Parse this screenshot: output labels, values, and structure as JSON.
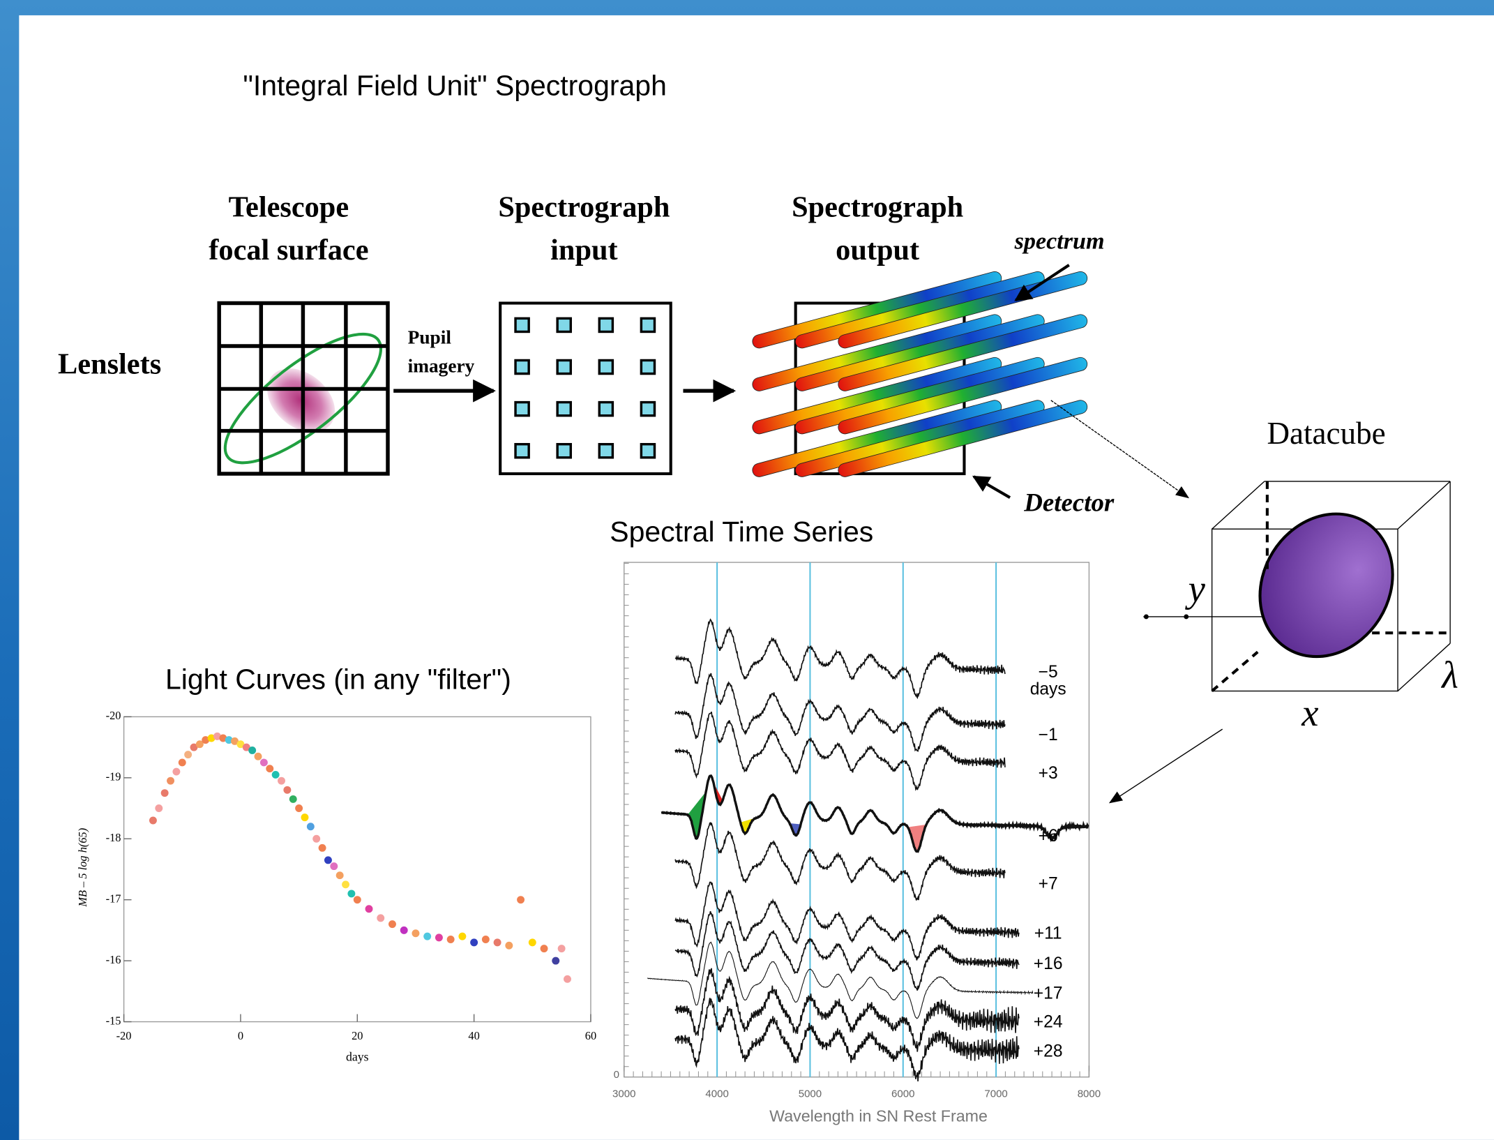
{
  "title": "\"Integral Field Unit\" Spectrograph",
  "lenslets_label": "Lenslets",
  "stages": [
    {
      "lines": [
        "Telescope",
        "focal surface"
      ]
    },
    {
      "lines": [
        "Spectrograph",
        "input"
      ]
    },
    {
      "lines": [
        "Spectrograph",
        "output"
      ]
    }
  ],
  "pupil_label": [
    "Pupil",
    "imagery"
  ],
  "spectrum_label": "spectrum",
  "detector_label": "Detector",
  "datacube": {
    "title": "Datacube",
    "y_label": "y",
    "x_label": "x",
    "lambda_label": "λ"
  },
  "spectral_time_series": {
    "title": "Spectral Time Series",
    "x_label": "Wavelength in SN Rest Frame",
    "xlim": [
      3000,
      8000
    ],
    "xticks": [
      3000,
      4000,
      5000,
      6000,
      7000,
      8000
    ],
    "yticks": [
      0
    ],
    "reference_lines": [
      4000,
      5000,
      6000,
      7000
    ],
    "epochs": [
      [
        "−5",
        "days"
      ],
      [
        "−1"
      ],
      [
        "+3"
      ],
      [
        "+6"
      ],
      [
        "+7"
      ],
      [
        "+11"
      ],
      [
        "+16"
      ],
      [
        "+17"
      ],
      [
        "+24"
      ],
      [
        "+28"
      ]
    ]
  },
  "light_curves": {
    "title": "Light Curves (in any \"filter\")",
    "x_label": "days",
    "y_label": "MB – 5 log h(65)",
    "xlim": [
      -20,
      60
    ],
    "ylim": [
      -15,
      -20
    ],
    "xticks": [
      -20,
      0,
      20,
      40,
      60
    ],
    "yticks": [
      -20,
      -19,
      -18,
      -17,
      -16,
      -15
    ],
    "x": [
      -15,
      -14,
      -13,
      -12,
      -11,
      -10,
      -9,
      -8,
      -7,
      -6,
      -5,
      -4,
      -3,
      -2,
      -1,
      0,
      1,
      2,
      3,
      4,
      5,
      6,
      7,
      8,
      9,
      10,
      11,
      12,
      13,
      14,
      15,
      16,
      17,
      18,
      19,
      20,
      22,
      24,
      26,
      28,
      30,
      32,
      34,
      36,
      38,
      40,
      42,
      44,
      46,
      48,
      50,
      52,
      54,
      55,
      56
    ],
    "y": [
      -18.3,
      -18.5,
      -18.75,
      -18.95,
      -19.1,
      -19.25,
      -19.38,
      -19.5,
      -19.55,
      -19.62,
      -19.65,
      -19.68,
      -19.65,
      -19.62,
      -19.6,
      -19.55,
      -19.5,
      -19.45,
      -19.35,
      -19.25,
      -19.15,
      -19.05,
      -18.95,
      -18.8,
      -18.65,
      -18.5,
      -18.35,
      -18.2,
      -18.0,
      -17.85,
      -17.65,
      -17.55,
      -17.4,
      -17.25,
      -17.1,
      -17.0,
      -16.85,
      -16.7,
      -16.6,
      -16.5,
      -16.45,
      -16.4,
      -16.38,
      -16.35,
      -16.4,
      -16.3,
      -16.35,
      -16.3,
      -16.25,
      -17.0,
      -16.3,
      -16.2,
      -16.0,
      -16.2,
      -15.7
    ],
    "colors": [
      "#e87a6a",
      "#f4a0a0",
      "#e87a6a",
      "#f09060",
      "#f4a0a0",
      "#f08050",
      "#f4b080",
      "#e87a6a",
      "#f4a060",
      "#f08050",
      "#ffd700",
      "#f4a0a0",
      "#f08050",
      "#50c8e0",
      "#f4a060",
      "#ffe040",
      "#f08080",
      "#20b0a0",
      "#f4a060",
      "#e070c0",
      "#f08050",
      "#20c0b0",
      "#f4a0a0",
      "#e87a6a",
      "#30b060",
      "#f08050",
      "#ffd700",
      "#50a0e0",
      "#f4a0a0",
      "#f08050",
      "#3040c0",
      "#e070c0",
      "#f4a060",
      "#ffe040",
      "#20c0b0",
      "#f08050",
      "#e040a0",
      "#f4a0a0",
      "#f08050",
      "#c030c0",
      "#f4a060",
      "#50c8e0",
      "#e040a0",
      "#f08050",
      "#ffd700",
      "#3040c0",
      "#f08050",
      "#e87a6a",
      "#f4a060",
      "#f08050",
      "#ffd700",
      "#f08050",
      "#4040a0",
      "#f4a0a0",
      "#f4a0a0"
    ]
  }
}
